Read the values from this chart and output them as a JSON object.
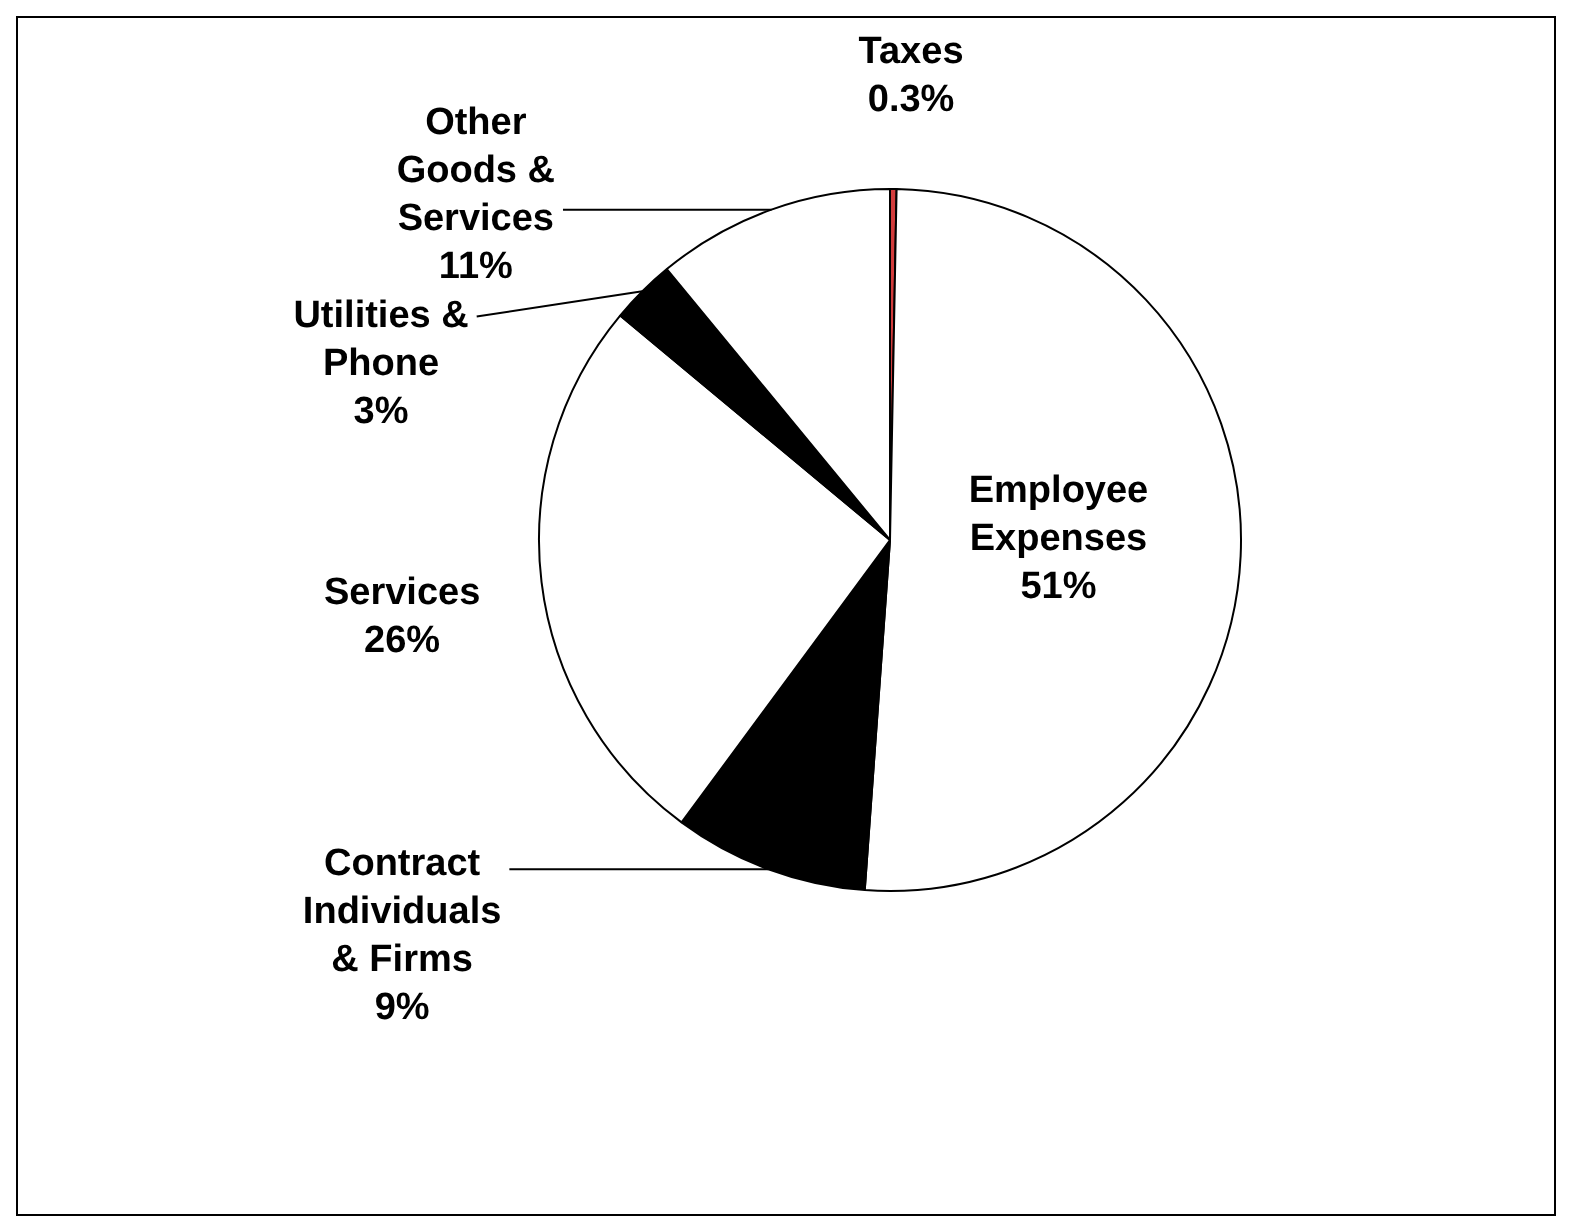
{
  "chart_data": {
    "type": "pie",
    "categories": [
      "Taxes",
      "Employee Expenses",
      "Contract Individuals & Firms",
      "Services",
      "Utilities & Phone",
      "Other Goods & Services"
    ],
    "values": [
      0.3,
      51,
      9,
      26,
      3,
      11
    ],
    "value_labels": [
      "0.3%",
      "51%",
      "9%",
      "26%",
      "3%",
      "11%"
    ],
    "colors": [
      "#d23c3c",
      "#ffffff",
      "#000000",
      "#ffffff",
      "#000000",
      "#ffffff"
    ],
    "legend": false
  }
}
